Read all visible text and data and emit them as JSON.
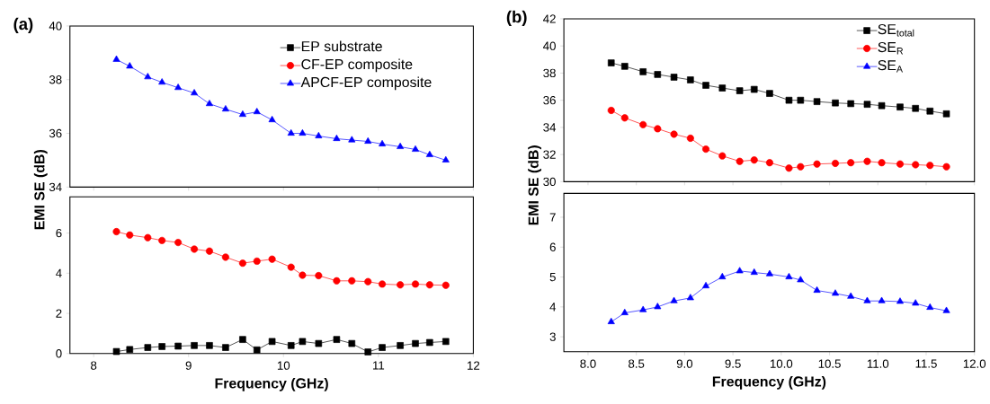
{
  "chart_data": [
    {
      "type": "line",
      "title": "(a)",
      "x": [
        8.24,
        8.38,
        8.57,
        8.72,
        8.89,
        9.06,
        9.22,
        9.39,
        9.57,
        9.72,
        9.88,
        10.08,
        10.2,
        10.37,
        10.56,
        10.72,
        10.89,
        11.04,
        11.23,
        11.39,
        11.54,
        11.71
      ],
      "xlim": [
        7.75,
        12
      ],
      "xticks": [
        8,
        9,
        10,
        11,
        12
      ],
      "ylim": [
        34,
        40
      ],
      "yticks": [
        34,
        36,
        38,
        40
      ],
      "tick_labels": "y",
      "legend": "top right",
      "series": [
        {
          "name": "APCF-EP composite",
          "color": "#0000ff",
          "marker": "triangle",
          "values": [
            38.75,
            38.5,
            38.1,
            37.9,
            37.7,
            37.5,
            37.1,
            36.9,
            36.7,
            36.8,
            36.5,
            36.0,
            36.0,
            35.9,
            35.8,
            35.75,
            35.7,
            35.6,
            35.5,
            35.4,
            35.2,
            35.0
          ]
        }
      ]
    },
    {
      "type": "line",
      "xlabel": "Frequency (GHz)",
      "ylabel": "EMI SE (dB)",
      "x": [
        8.24,
        8.38,
        8.57,
        8.72,
        8.89,
        9.06,
        9.22,
        9.39,
        9.57,
        9.72,
        9.88,
        10.08,
        10.2,
        10.37,
        10.56,
        10.72,
        10.89,
        11.04,
        11.23,
        11.39,
        11.54,
        11.71
      ],
      "xlim": [
        7.75,
        12
      ],
      "xticks": [
        8,
        9,
        10,
        11,
        12
      ],
      "ylim": [
        0,
        7.8
      ],
      "yticks": [
        0,
        2,
        4,
        6
      ],
      "legend": "top right",
      "series": [
        {
          "name": "EP substrate",
          "color": "#000000",
          "marker": "square",
          "values": [
            0.1,
            0.2,
            0.3,
            0.35,
            0.37,
            0.4,
            0.4,
            0.3,
            0.7,
            0.18,
            0.6,
            0.4,
            0.6,
            0.5,
            0.7,
            0.5,
            0.08,
            0.3,
            0.4,
            0.5,
            0.55,
            0.6
          ]
        },
        {
          "name": "CF-EP composite",
          "color": "#ff0000",
          "marker": "circle",
          "values": [
            6.07,
            5.9,
            5.77,
            5.63,
            5.53,
            5.2,
            5.1,
            4.8,
            4.5,
            4.6,
            4.7,
            4.3,
            3.9,
            3.88,
            3.62,
            3.62,
            3.58,
            3.46,
            3.42,
            3.46,
            3.42,
            3.4
          ]
        }
      ]
    },
    {
      "type": "line",
      "title": "(b)",
      "x": [
        8.24,
        8.38,
        8.57,
        8.72,
        8.89,
        9.06,
        9.22,
        9.39,
        9.57,
        9.72,
        9.88,
        10.08,
        10.2,
        10.37,
        10.56,
        10.72,
        10.89,
        11.04,
        11.23,
        11.39,
        11.54,
        11.71
      ],
      "xlim": [
        7.75,
        12
      ],
      "xticks": [
        8,
        8.5,
        9,
        9.5,
        10,
        10.5,
        11,
        11.5,
        12
      ],
      "ylim": [
        30,
        42
      ],
      "yticks": [
        30,
        32,
        34,
        36,
        38,
        40,
        42
      ],
      "tick_labels": "y",
      "legend": "top right",
      "series": [
        {
          "name": "SE$_{total}$",
          "color": "#000000",
          "marker": "square",
          "values": [
            38.75,
            38.5,
            38.1,
            37.9,
            37.7,
            37.5,
            37.1,
            36.9,
            36.7,
            36.8,
            36.5,
            36.0,
            36.0,
            35.9,
            35.8,
            35.75,
            35.7,
            35.6,
            35.5,
            35.4,
            35.2,
            35.0
          ]
        },
        {
          "name": "SE$_{R}$",
          "color": "#ff0000",
          "marker": "circle",
          "values": [
            35.25,
            34.7,
            34.2,
            33.9,
            33.5,
            33.2,
            32.4,
            31.9,
            31.5,
            31.6,
            31.4,
            31.0,
            31.1,
            31.3,
            31.35,
            31.4,
            31.5,
            31.4,
            31.3,
            31.25,
            31.2,
            31.1
          ]
        }
      ]
    },
    {
      "type": "line",
      "xlabel": "Frequency (GHz)",
      "ylabel": "EMI SE (dB)",
      "x": [
        8.24,
        8.38,
        8.57,
        8.72,
        8.89,
        9.06,
        9.22,
        9.39,
        9.57,
        9.72,
        9.88,
        10.08,
        10.2,
        10.37,
        10.56,
        10.72,
        10.89,
        11.04,
        11.23,
        11.39,
        11.54,
        11.71
      ],
      "xlim": [
        7.75,
        12
      ],
      "xticks": [
        {
          "value": 8,
          "label": "8.0"
        },
        {
          "value": 8.5,
          "label": "8.5"
        },
        {
          "value": 9,
          "label": "9.0"
        },
        {
          "value": 9.5,
          "label": "9.5"
        },
        {
          "value": 10,
          "label": "10.0"
        },
        {
          "value": 10.5,
          "label": "10.5"
        },
        {
          "value": 11,
          "label": "11.0"
        },
        {
          "value": 11.5,
          "label": "11.5"
        },
        {
          "value": 12,
          "label": "12.0"
        }
      ],
      "ylim": [
        2.5,
        7.8
      ],
      "yticks": [
        3,
        4,
        5,
        6,
        7
      ],
      "legend": "top right",
      "series": [
        {
          "name": "SE$_{A}$",
          "color": "#0000ff",
          "marker": "triangle",
          "values": [
            3.5,
            3.8,
            3.9,
            4.0,
            4.2,
            4.3,
            4.7,
            5.0,
            5.2,
            5.15,
            5.1,
            5.0,
            4.9,
            4.55,
            4.45,
            4.35,
            4.2,
            4.2,
            4.18,
            4.12,
            3.98,
            3.87
          ]
        }
      ]
    }
  ]
}
